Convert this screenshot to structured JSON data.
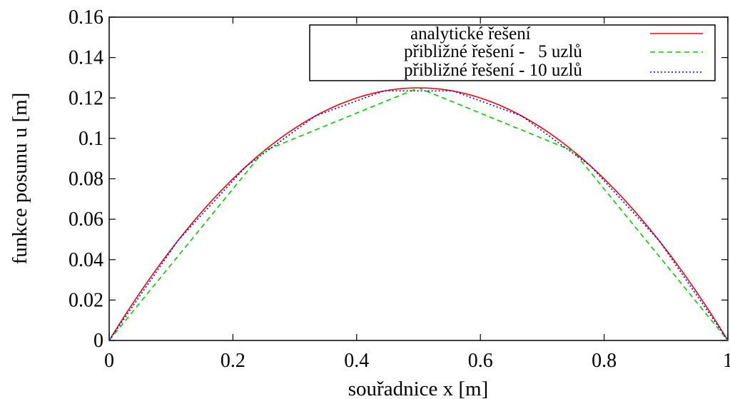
{
  "chart_data": {
    "type": "line",
    "title": "",
    "xlabel": "souřadnice x [m]",
    "ylabel": "funkce posunu u [m]",
    "xlim": [
      0,
      1
    ],
    "ylim": [
      0,
      0.16
    ],
    "x_ticks": [
      "0",
      "0.2",
      "0.4",
      "0.6",
      "0.8",
      "1"
    ],
    "y_ticks": [
      "0",
      "0.02",
      "0.04",
      "0.06",
      "0.08",
      "0.1",
      "0.12",
      "0.14",
      "0.16"
    ],
    "grid": false,
    "legend_position": "top-right",
    "series": [
      {
        "name": "analytické řešení",
        "style": "solid",
        "color": "#ff0000",
        "x": [
          0,
          0.05,
          0.1,
          0.15,
          0.2,
          0.25,
          0.3,
          0.35,
          0.4,
          0.45,
          0.5,
          0.55,
          0.6,
          0.65,
          0.7,
          0.75,
          0.8,
          0.85,
          0.9,
          0.95,
          1
        ],
        "y": [
          0,
          0.02375,
          0.045,
          0.06375,
          0.08,
          0.09375,
          0.105,
          0.11375,
          0.12,
          0.12375,
          0.125,
          0.12375,
          0.12,
          0.11375,
          0.105,
          0.09375,
          0.08,
          0.06375,
          0.045,
          0.02375,
          0
        ]
      },
      {
        "name": "přibližné řešení -   5 uzlů",
        "style": "dashed",
        "color": "#00cc00",
        "x": [
          0,
          0.25,
          0.5,
          0.75,
          1
        ],
        "y": [
          0,
          0.09375,
          0.125,
          0.09375,
          0
        ]
      },
      {
        "name": "přibližné řešení - 10 uzlů",
        "style": "dotted",
        "color": "#0000ff",
        "x": [
          0,
          0.1111,
          0.2222,
          0.3333,
          0.4444,
          0.5556,
          0.6667,
          0.7778,
          0.8889,
          1
        ],
        "y": [
          0,
          0.0494,
          0.0864,
          0.1111,
          0.1235,
          0.1235,
          0.1111,
          0.0864,
          0.0494,
          0
        ]
      }
    ]
  }
}
